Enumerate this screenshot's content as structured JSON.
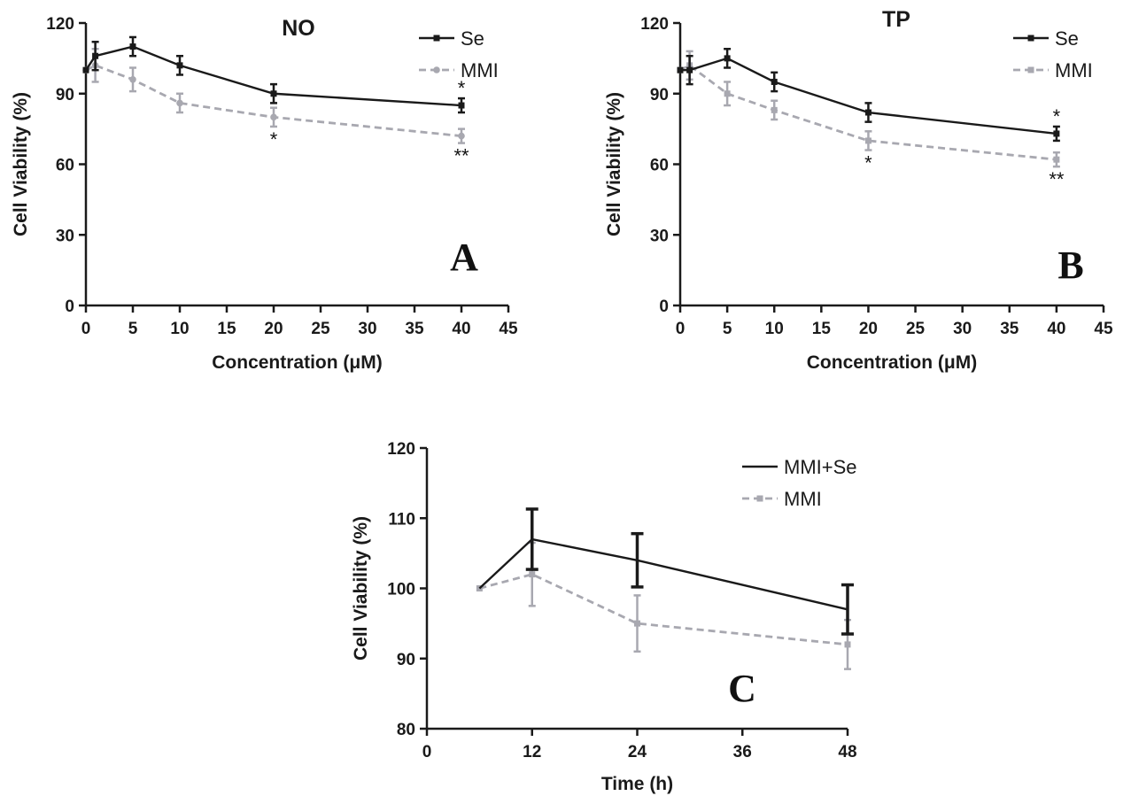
{
  "chart_data": [
    {
      "type": "line",
      "panel": "A",
      "title": "NO",
      "xlabel": "Concentration (μM)",
      "ylabel": "Cell Viability (%)",
      "xlim": [
        0,
        45
      ],
      "ylim": [
        0,
        120
      ],
      "xticks": [
        0,
        5,
        10,
        15,
        20,
        25,
        30,
        35,
        40,
        45
      ],
      "yticks": [
        0,
        30,
        60,
        90,
        120
      ],
      "legend_position": "top-right",
      "series": [
        {
          "name": "Se",
          "color": "#1a1a1a",
          "dashed": false,
          "marker": "square",
          "x": [
            0,
            1,
            5,
            10,
            20,
            40
          ],
          "y": [
            100,
            106,
            110,
            102,
            90,
            85
          ],
          "err": [
            0,
            6,
            4,
            4,
            4,
            3
          ]
        },
        {
          "name": "MMI",
          "color": "#a8a8b0",
          "dashed": true,
          "marker": "circle",
          "x": [
            0,
            1,
            5,
            10,
            20,
            40
          ],
          "y": [
            100,
            102,
            96,
            86,
            80,
            72
          ],
          "err": [
            0,
            7,
            5,
            4,
            4,
            3
          ]
        }
      ],
      "annotations": [
        {
          "text": "*",
          "x": 40,
          "y": 85,
          "position": "above"
        },
        {
          "text": "*",
          "x": 20,
          "y": 80,
          "position": "below"
        },
        {
          "text": "**",
          "x": 40,
          "y": 72,
          "position": "below"
        }
      ]
    },
    {
      "type": "line",
      "panel": "B",
      "title": "TP",
      "xlabel": "Concentration (μM)",
      "ylabel": "Cell Viability (%)",
      "xlim": [
        0,
        45
      ],
      "ylim": [
        0,
        120
      ],
      "xticks": [
        0,
        5,
        10,
        15,
        20,
        25,
        30,
        35,
        40,
        45
      ],
      "yticks": [
        0,
        30,
        60,
        90,
        120
      ],
      "legend_position": "top-right",
      "series": [
        {
          "name": "Se",
          "color": "#1a1a1a",
          "dashed": false,
          "marker": "square",
          "x": [
            0,
            1,
            5,
            10,
            20,
            40
          ],
          "y": [
            100,
            100,
            105,
            95,
            82,
            73
          ],
          "err": [
            0,
            6,
            4,
            4,
            4,
            3
          ]
        },
        {
          "name": "MMI",
          "color": "#a8a8b0",
          "dashed": true,
          "marker": "square",
          "x": [
            0,
            1,
            5,
            10,
            20,
            40
          ],
          "y": [
            100,
            102,
            90,
            83,
            70,
            62
          ],
          "err": [
            0,
            6,
            5,
            4,
            4,
            3
          ]
        }
      ],
      "annotations": [
        {
          "text": "*",
          "x": 40,
          "y": 73,
          "position": "above"
        },
        {
          "text": "*",
          "x": 20,
          "y": 70,
          "position": "below"
        },
        {
          "text": "**",
          "x": 40,
          "y": 62,
          "position": "below"
        }
      ]
    },
    {
      "type": "line",
      "panel": "C",
      "title": "",
      "xlabel": "Time (h)",
      "ylabel": "Cell Viability (%)",
      "xlim": [
        0,
        48
      ],
      "ylim": [
        80,
        120
      ],
      "xticks": [
        0,
        12,
        24,
        36,
        48
      ],
      "yticks": [
        80,
        90,
        100,
        110,
        120
      ],
      "legend_position": "top-right",
      "series": [
        {
          "name": "MMI+Se",
          "color": "#1a1a1a",
          "dashed": false,
          "marker": "none",
          "x": [
            6,
            12,
            24,
            48
          ],
          "y": [
            100,
            107,
            104,
            97
          ],
          "err": [
            0,
            4.3,
            3.8,
            3.5
          ]
        },
        {
          "name": "MMI",
          "color": "#a8a8b0",
          "dashed": true,
          "marker": "square",
          "x": [
            6,
            12,
            24,
            48
          ],
          "y": [
            100,
            102,
            95,
            92
          ],
          "err": [
            0,
            4.5,
            4,
            3.5
          ]
        }
      ],
      "annotations": []
    }
  ]
}
